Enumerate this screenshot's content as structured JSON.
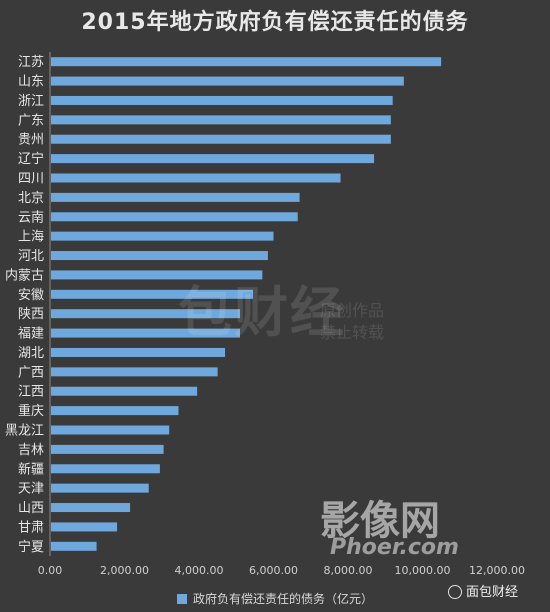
{
  "chart_data": {
    "type": "bar",
    "orientation": "horizontal",
    "title": "2015年地方政府负有偿还责任的债务",
    "categories": [
      "江苏",
      "山东",
      "浙江",
      "广东",
      "贵州",
      "辽宁",
      "四川",
      "北京",
      "云南",
      "上海",
      "河北",
      "内蒙古",
      "安徽",
      "陕西",
      "福建",
      "湖北",
      "广西",
      "江西",
      "重庆",
      "黑龙江",
      "吉林",
      "新疆",
      "天津",
      "山西",
      "甘肃",
      "宁夏"
    ],
    "series": [
      {
        "name": "政府负有偿还责任的债务（亿元）",
        "values": [
          10500,
          9500,
          9200,
          9150,
          9150,
          8700,
          7800,
          6700,
          6650,
          6000,
          5850,
          5700,
          5450,
          5100,
          5100,
          4700,
          4500,
          3950,
          3450,
          3200,
          3050,
          2950,
          2650,
          2150,
          1800,
          1250
        ]
      }
    ],
    "xlim": [
      0,
      12000
    ],
    "xticks": [
      "0.00",
      "2,000.00",
      "4,000.00",
      "6,000.00",
      "8,000.00",
      "10,000.00",
      "12,000.00"
    ],
    "grid": false,
    "legend_position": "bottom"
  },
  "colors": {
    "background": "#3a3a3a",
    "bar": "#6fa8dc",
    "axis": "#8a8a8a"
  },
  "watermarks": {
    "center_big": "包财经",
    "center_small_line1": "原创作品",
    "center_small_line2": "禁止转载",
    "bottom_big": "影像网",
    "bottom_small": "Phoer.com",
    "brand": "面包财经"
  }
}
